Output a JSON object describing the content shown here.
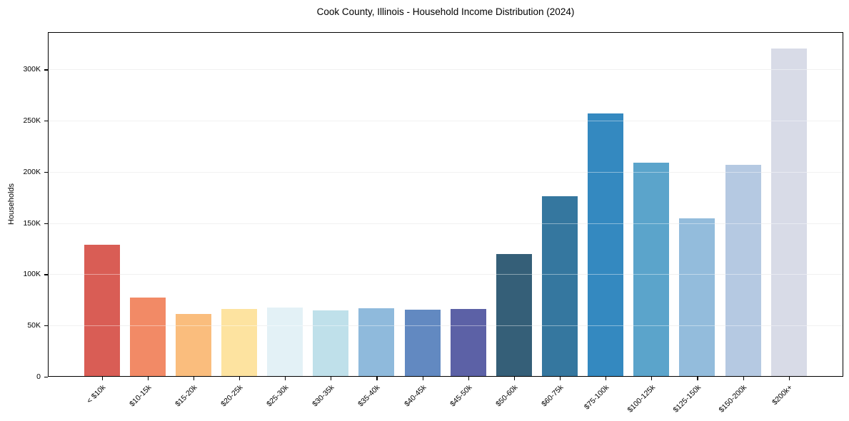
{
  "chart_data": {
    "type": "bar",
    "title": "Cook County, Illinois - Household Income Distribution (2024)",
    "xlabel": "",
    "ylabel": "Households",
    "categories": [
      "< $10k",
      "$10-15k",
      "$15-20k",
      "$20-25k",
      "$25-30k",
      "$30-35k",
      "$35-40k",
      "$40-45k",
      "$45-50k",
      "$50-60k",
      "$60-75k",
      "$75-100k",
      "$100-125k",
      "$125-150k",
      "$150-200k",
      "$200k+"
    ],
    "values": [
      129000,
      77500,
      61500,
      66000,
      67500,
      64500,
      67000,
      65500,
      66000,
      119500,
      176000,
      257000,
      209000,
      155000,
      207000,
      320500
    ],
    "bar_colors": [
      "#d95d55",
      "#f28a66",
      "#fabd7d",
      "#fde3a0",
      "#e3f1f6",
      "#bfe0ea",
      "#8fbadc",
      "#6289c1",
      "#5c61a6",
      "#355f78",
      "#35779f",
      "#3489c0",
      "#5ba4cb",
      "#93bcdc",
      "#b5c9e2",
      "#d8dbe7"
    ],
    "yticks": [
      {
        "value": 0,
        "label": "0"
      },
      {
        "value": 50000,
        "label": "50K"
      },
      {
        "value": 100000,
        "label": "100K"
      },
      {
        "value": 150000,
        "label": "150K"
      },
      {
        "value": 200000,
        "label": "200K"
      },
      {
        "value": 250000,
        "label": "250K"
      },
      {
        "value": 300000,
        "label": "300K"
      }
    ],
    "ylim": [
      0,
      336500
    ],
    "grid": "horizontal",
    "legend": "none",
    "x_tick_rotation_deg": 45
  },
  "colors": {
    "background": "#ffffff",
    "axis_frame": "#000000",
    "gridline": "#e7e7e7",
    "text": "#000000"
  }
}
